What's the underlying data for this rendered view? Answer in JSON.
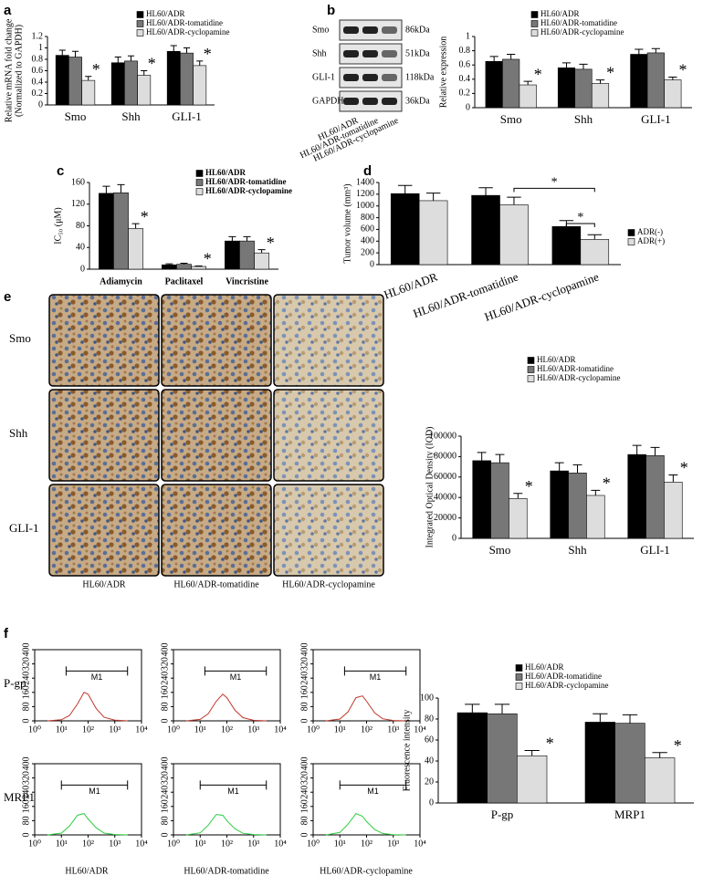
{
  "panel_labels": [
    "a",
    "b",
    "c",
    "d",
    "e",
    "f"
  ],
  "blot": {
    "rows": [
      {
        "name": "Smo",
        "size": "86kDa"
      },
      {
        "name": "Shh",
        "size": "51kDa"
      },
      {
        "name": "GLI-1",
        "size": "118kDa"
      },
      {
        "name": "GAPDH",
        "size": "36kDa"
      }
    ],
    "lanes": [
      "HL60/ADR",
      "HL60/ADR-tomatidine",
      "HL60/ADR-cyclopamine"
    ]
  },
  "ihc": {
    "rows": [
      "Smo",
      "Shh",
      "GLI-1"
    ],
    "columns": [
      "HL60/ADR",
      "HL60/ADR-tomatidine",
      "HL60/ADR-cyclopamine"
    ]
  },
  "flow": {
    "rows": [
      "P-gp",
      "MRP1"
    ],
    "columns": [
      "HL60/ADR",
      "HL60/ADR-tomatidine",
      "HL60/ADR-cyclopamine"
    ]
  },
  "chart_data": [
    {
      "type": "bar",
      "ylabel": [
        "Relative mRNA fold change",
        "(Normalized to GAPDH)"
      ],
      "categories": [
        "Smo",
        "Shh",
        "GLI-1"
      ],
      "ylim": [
        0,
        1.2
      ],
      "yticks": [
        0,
        0.2,
        0.4,
        0.6,
        0.8,
        1,
        1.2
      ],
      "series": [
        {
          "name": "HL60/ADR",
          "color": "#000000",
          "values": [
            0.87,
            0.74,
            0.94
          ],
          "errors": [
            0.09,
            0.1,
            0.1
          ]
        },
        {
          "name": "HL60/ADR-tomatidine",
          "color": "#777777",
          "values": [
            0.84,
            0.77,
            0.91
          ],
          "errors": [
            0.1,
            0.09,
            0.09
          ]
        },
        {
          "name": "HL60/ADR-cyclopamine",
          "color": "#dddddd",
          "values": [
            0.43,
            0.52,
            0.69
          ],
          "errors": [
            0.07,
            0.08,
            0.08
          ]
        }
      ],
      "significance": [
        "*",
        "*",
        "*"
      ]
    },
    {
      "type": "bar",
      "ylabel": [
        "Relative expression"
      ],
      "categories": [
        "Smo",
        "Shh",
        "GLI-1"
      ],
      "ylim": [
        0,
        1
      ],
      "yticks": [
        0,
        0.2,
        0.4,
        0.6,
        0.8,
        1
      ],
      "series": [
        {
          "name": "HL60/ADR",
          "color": "#000000",
          "values": [
            0.65,
            0.56,
            0.75
          ],
          "errors": [
            0.07,
            0.07,
            0.07
          ]
        },
        {
          "name": "HL60/ADR-tomatidine",
          "color": "#777777",
          "values": [
            0.68,
            0.54,
            0.77
          ],
          "errors": [
            0.07,
            0.07,
            0.06
          ]
        },
        {
          "name": "HL60/ADR-cyclopamine",
          "color": "#dddddd",
          "values": [
            0.32,
            0.34,
            0.39
          ],
          "errors": [
            0.05,
            0.05,
            0.04
          ]
        }
      ],
      "significance": [
        "*",
        "*",
        "*"
      ]
    },
    {
      "type": "bar",
      "ylabel": [
        "IC₅₀ (μM)"
      ],
      "categories": [
        "Adiamycin",
        "Paclitaxel",
        "Vincristine"
      ],
      "ylim": [
        0,
        160
      ],
      "yticks": [
        0,
        40,
        80,
        120,
        160
      ],
      "series": [
        {
          "name": "HL60/ADR",
          "color": "#000000",
          "values": [
            140,
            8,
            52
          ],
          "errors": [
            13,
            2,
            8
          ]
        },
        {
          "name": "HL60/ADR-tomatidine",
          "color": "#777777",
          "values": [
            141,
            9,
            52
          ],
          "errors": [
            15,
            2,
            8
          ]
        },
        {
          "name": "HL60/ADR-cyclopamine",
          "color": "#dddddd",
          "values": [
            75,
            5,
            30
          ],
          "errors": [
            9,
            1,
            6
          ]
        }
      ],
      "significance": [
        "*",
        "*",
        "*"
      ]
    },
    {
      "type": "bar",
      "ylabel": [
        "Tumor volume (mm³)"
      ],
      "categories": [
        "HL60/ADR",
        "HL60/ADR-tomatidine",
        "HL60/ADR-cyclopamine"
      ],
      "ylim": [
        0,
        1400
      ],
      "yticks": [
        0,
        200,
        400,
        600,
        800,
        1000,
        1200,
        1400
      ],
      "series": [
        {
          "name": "ADR(-)",
          "color": "#000000",
          "values": [
            1210,
            1180,
            650
          ],
          "errors": [
            140,
            130,
            100
          ]
        },
        {
          "name": "ADR(+)",
          "color": "#dddddd",
          "values": [
            1090,
            1020,
            430
          ],
          "errors": [
            130,
            130,
            80
          ]
        }
      ],
      "brackets": [
        "*",
        "*"
      ]
    },
    {
      "type": "bar",
      "ylabel": [
        "Integrated Optical Density (IOD)"
      ],
      "categories": [
        "Smo",
        "Shh",
        "GLI-1"
      ],
      "ylim": [
        0,
        100000
      ],
      "yticks": [
        0,
        20000,
        40000,
        60000,
        80000,
        100000
      ],
      "series": [
        {
          "name": "HL60/ADR",
          "color": "#000000",
          "values": [
            76000,
            66000,
            82000
          ],
          "errors": [
            8000,
            8000,
            9000
          ]
        },
        {
          "name": "HL60/ADR-tomatidine",
          "color": "#777777",
          "values": [
            74000,
            64000,
            81000
          ],
          "errors": [
            8000,
            8000,
            8000
          ]
        },
        {
          "name": "HL60/ADR-cyclopamine",
          "color": "#dddddd",
          "values": [
            39000,
            42000,
            55000
          ],
          "errors": [
            5000,
            5000,
            7000
          ]
        }
      ],
      "significance": [
        "*",
        "*",
        "*"
      ]
    },
    {
      "type": "bar",
      "ylabel": [
        "Fluorescence intensity"
      ],
      "categories": [
        "P-gp",
        "MRP1"
      ],
      "ylim": [
        0,
        100
      ],
      "yticks": [
        0,
        20,
        40,
        60,
        80,
        100
      ],
      "series": [
        {
          "name": "HL60/ADR",
          "color": "#000000",
          "values": [
            86,
            77
          ],
          "errors": [
            8,
            8
          ]
        },
        {
          "name": "HL60/ADR-tomatidine",
          "color": "#777777",
          "values": [
            85,
            76
          ],
          "errors": [
            9,
            8
          ]
        },
        {
          "name": "HL60/ADR-cyclopamine",
          "color": "#dddddd",
          "values": [
            45,
            43
          ],
          "errors": [
            5,
            5
          ]
        }
      ],
      "significance": [
        "*",
        "*"
      ]
    },
    {
      "type": "line",
      "log_x": true,
      "color": "#c0392b",
      "x": [
        3,
        10,
        20,
        40,
        70,
        100,
        200,
        400,
        1000,
        3000
      ],
      "values": [
        0,
        6,
        30,
        95,
        160,
        150,
        70,
        20,
        4,
        0
      ],
      "xlim": [
        1,
        10000
      ],
      "ylim": [
        0,
        400
      ],
      "xticks": [
        {
          "value": 1,
          "label": "10⁰"
        },
        {
          "value": 10,
          "label": "10¹"
        },
        {
          "value": 100,
          "label": "10²"
        },
        {
          "value": 1000,
          "label": "10³"
        },
        {
          "value": 10000,
          "label": "10⁴"
        }
      ],
      "yticks": [
        0,
        80,
        160,
        240,
        320,
        400
      ],
      "gate": {
        "label": "M1",
        "range": [
          15,
          3000
        ]
      }
    },
    {
      "type": "line",
      "log_x": true,
      "color": "#c0392b",
      "x": [
        3,
        10,
        20,
        40,
        70,
        100,
        200,
        400,
        1000,
        3000
      ],
      "values": [
        0,
        8,
        40,
        110,
        150,
        130,
        60,
        18,
        3,
        0
      ],
      "xlim": [
        1,
        10000
      ],
      "ylim": [
        0,
        400
      ],
      "xticks": [
        {
          "value": 1,
          "label": "10⁰"
        },
        {
          "value": 10,
          "label": "10¹"
        },
        {
          "value": 100,
          "label": "10²"
        },
        {
          "value": 1000,
          "label": "10³"
        },
        {
          "value": 10000,
          "label": "10⁴"
        }
      ],
      "yticks": [
        0,
        80,
        160,
        240,
        320,
        400
      ],
      "gate": {
        "label": "M1",
        "range": [
          15,
          3000
        ]
      }
    },
    {
      "type": "line",
      "log_x": true,
      "color": "#c0392b",
      "x": [
        3,
        10,
        20,
        40,
        70,
        100,
        200,
        400,
        1000,
        3000
      ],
      "values": [
        0,
        10,
        50,
        130,
        140,
        110,
        45,
        12,
        2,
        0
      ],
      "xlim": [
        1,
        10000
      ],
      "ylim": [
        0,
        400
      ],
      "xticks": [
        {
          "value": 1,
          "label": "10⁰"
        },
        {
          "value": 10,
          "label": "10¹"
        },
        {
          "value": 100,
          "label": "10²"
        },
        {
          "value": 1000,
          "label": "10³"
        },
        {
          "value": 10000,
          "label": "10⁴"
        }
      ],
      "yticks": [
        0,
        80,
        160,
        240,
        320,
        400
      ],
      "gate": {
        "label": "M1",
        "range": [
          15,
          3000
        ]
      }
    },
    {
      "type": "line",
      "log_x": true,
      "color": "#2ecc40",
      "x": [
        3,
        10,
        20,
        40,
        70,
        100,
        200,
        400,
        1000,
        3000
      ],
      "values": [
        0,
        10,
        50,
        110,
        120,
        90,
        40,
        10,
        2,
        0
      ],
      "xlim": [
        1,
        10000
      ],
      "ylim": [
        0,
        400
      ],
      "xticks": [
        {
          "value": 1,
          "label": "10⁰"
        },
        {
          "value": 10,
          "label": "10¹"
        },
        {
          "value": 100,
          "label": "10²"
        },
        {
          "value": 1000,
          "label": "10³"
        },
        {
          "value": 10000,
          "label": "10⁴"
        }
      ],
      "yticks": [
        0,
        80,
        160,
        240,
        320,
        400
      ],
      "gate": {
        "label": "M1",
        "range": [
          10,
          3000
        ]
      }
    },
    {
      "type": "line",
      "log_x": true,
      "color": "#2ecc40",
      "x": [
        3,
        10,
        20,
        40,
        70,
        100,
        200,
        400,
        1000,
        3000
      ],
      "values": [
        0,
        12,
        55,
        115,
        110,
        80,
        35,
        9,
        2,
        0
      ],
      "xlim": [
        1,
        10000
      ],
      "ylim": [
        0,
        400
      ],
      "xticks": [
        {
          "value": 1,
          "label": "10⁰"
        },
        {
          "value": 10,
          "label": "10¹"
        },
        {
          "value": 100,
          "label": "10²"
        },
        {
          "value": 1000,
          "label": "10³"
        },
        {
          "value": 10000,
          "label": "10⁴"
        }
      ],
      "yticks": [
        0,
        80,
        160,
        240,
        320,
        400
      ],
      "gate": {
        "label": "M1",
        "range": [
          10,
          3000
        ]
      }
    },
    {
      "type": "line",
      "log_x": true,
      "color": "#2ecc40",
      "x": [
        3,
        10,
        20,
        40,
        70,
        100,
        200,
        400,
        1000,
        3000
      ],
      "values": [
        0,
        14,
        60,
        120,
        105,
        75,
        30,
        8,
        1,
        0
      ],
      "xlim": [
        1,
        10000
      ],
      "ylim": [
        0,
        400
      ],
      "xticks": [
        {
          "value": 1,
          "label": "10⁰"
        },
        {
          "value": 10,
          "label": "10¹"
        },
        {
          "value": 100,
          "label": "10²"
        },
        {
          "value": 1000,
          "label": "10³"
        },
        {
          "value": 10000,
          "label": "10⁴"
        }
      ],
      "yticks": [
        0,
        80,
        160,
        240,
        320,
        400
      ],
      "gate": {
        "label": "M1",
        "range": [
          10,
          3000
        ]
      }
    }
  ]
}
